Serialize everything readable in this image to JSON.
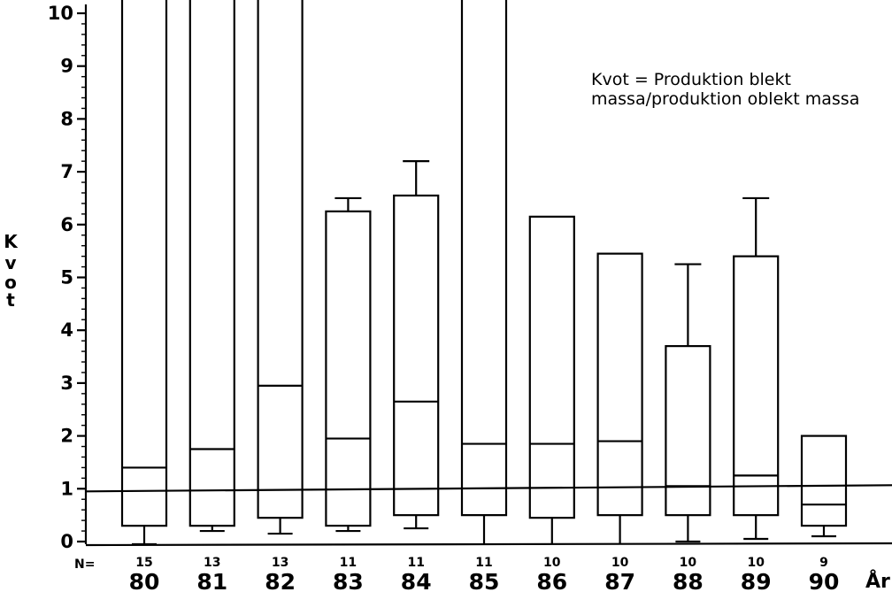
{
  "chart_data": {
    "type": "box",
    "ylabel": "Kvot",
    "xlabel": "År",
    "n_label": "N=",
    "ylim": [
      0,
      10
    ],
    "y_ticks": [
      "0",
      "1",
      "2",
      "3",
      "4",
      "5",
      "6",
      "7",
      "8",
      "9",
      "10"
    ],
    "reference_line": 1.0,
    "annotation": [
      "Kvot = Produktion blekt",
      "massa/produktion oblekt massa"
    ],
    "categories": [
      "80",
      "81",
      "82",
      "83",
      "84",
      "85",
      "86",
      "87",
      "88",
      "89",
      "90"
    ],
    "n": [
      "15",
      "13",
      "13",
      "11",
      "11",
      "11",
      "10",
      "10",
      "10",
      "10",
      "9"
    ],
    "boxes": [
      {
        "whisker_low": -0.05,
        "q1": 0.3,
        "median": 1.4,
        "q3": 10.0,
        "whisker_high": null
      },
      {
        "whisker_low": 0.2,
        "q1": 0.3,
        "median": 1.75,
        "q3": 10.0,
        "whisker_high": null
      },
      {
        "whisker_low": 0.15,
        "q1": 0.45,
        "median": 2.95,
        "q3": 10.0,
        "whisker_high": null
      },
      {
        "whisker_low": 0.2,
        "q1": 0.3,
        "median": 1.95,
        "q3": 6.25,
        "whisker_high": 6.5
      },
      {
        "whisker_low": 0.25,
        "q1": 0.5,
        "median": 2.65,
        "q3": 6.55,
        "whisker_high": 7.2
      },
      {
        "whisker_low": null,
        "q1": 0.5,
        "median": 1.85,
        "q3": 10.0,
        "whisker_high": null
      },
      {
        "whisker_low": null,
        "q1": 0.45,
        "median": 1.85,
        "q3": 6.15,
        "whisker_high": null
      },
      {
        "whisker_low": null,
        "q1": 0.5,
        "median": 1.9,
        "q3": 5.45,
        "whisker_high": null
      },
      {
        "whisker_low": 0.0,
        "q1": 0.5,
        "median": 1.05,
        "q3": 3.7,
        "whisker_high": 5.25
      },
      {
        "whisker_low": 0.05,
        "q1": 0.5,
        "median": 1.25,
        "q3": 5.4,
        "whisker_high": 6.5
      },
      {
        "whisker_low": 0.1,
        "q1": 0.3,
        "median": 0.7,
        "q3": 2.0,
        "whisker_high": 2.0
      }
    ]
  }
}
